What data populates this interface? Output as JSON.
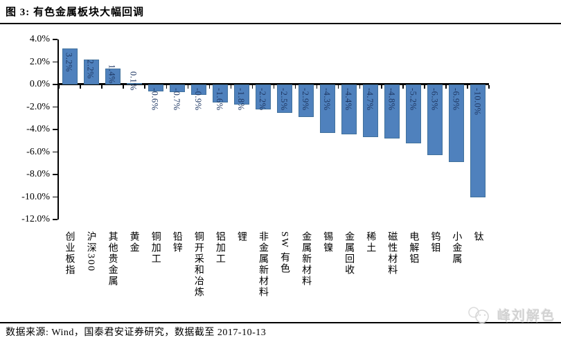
{
  "figure": {
    "title": "图 3: 有色金属板块大幅回调"
  },
  "chart_data": {
    "type": "bar",
    "title": "有色金属板块涨跌幅",
    "categories": [
      "创业板指",
      "沪深300",
      "其他贵金属",
      "黄金",
      "铜加工",
      "铅锌",
      "铜开采和冶炼",
      "铝加工",
      "锂",
      "非金属新材料",
      "SW 有色",
      "金属新材料",
      "锡镍",
      "金属回收",
      "稀土",
      "磁性材料",
      "电解铝",
      "钨钼",
      "小金属",
      "钛"
    ],
    "values": [
      3.2,
      2.2,
      1.4,
      0.1,
      -0.6,
      -0.7,
      -0.9,
      -1.6,
      -1.8,
      -2.2,
      -2.5,
      -2.9,
      -4.3,
      -4.4,
      -4.7,
      -4.8,
      -5.2,
      -6.3,
      -6.9,
      -10.0
    ],
    "value_labels": [
      "3.2%",
      "2.2%",
      "1.4%",
      "0.1%",
      "-0.6%",
      "-0.7%",
      "-0.9%",
      "-1.6%",
      "-1.8%",
      "-2.2%",
      "-2.5%",
      "-2.9%",
      "-4.3%",
      "-4.4%",
      "-4.7%",
      "-4.8%",
      "-5.2%",
      "-6.3%",
      "-6.9%",
      "-10.0%"
    ],
    "y_tick_labels": [
      "4.0%",
      "2.0%",
      "0.0%",
      "-2.0%",
      "-4.0%",
      "-6.0%",
      "-8.0%",
      "-10.0%",
      "-12.0%"
    ],
    "y_tick_values": [
      4,
      2,
      0,
      -2,
      -4,
      -6,
      -8,
      -10,
      -12
    ],
    "ylim": [
      -12,
      4
    ],
    "grid": false,
    "legend": false,
    "bar_color": "#4F81BD",
    "value_label_color": "#1F3864",
    "axis_color": "#000000"
  },
  "footer": {
    "source": "数据来源: Wind，国泰君安证券研究，数据截至 2017-10-13"
  },
  "watermark": {
    "text": "峰刘解色"
  }
}
